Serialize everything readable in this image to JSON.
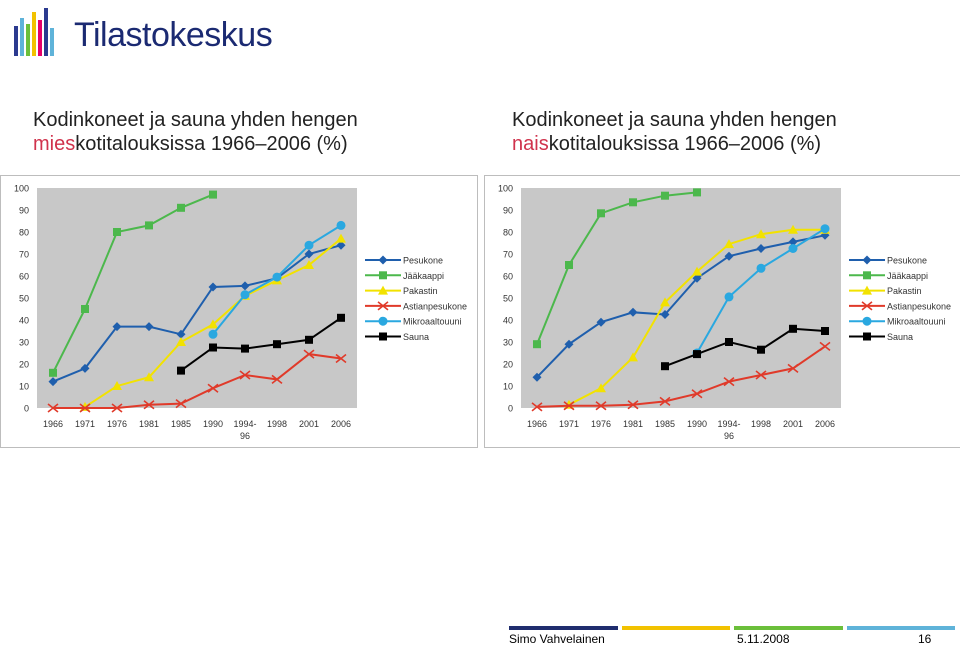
{
  "brand": {
    "name": "Tilastokeskus",
    "colors": [
      "#2b3a8f",
      "#5fb3d9",
      "#6bbf3a",
      "#f2c200",
      "#e5006a"
    ]
  },
  "left_title": {
    "highlight": "mies",
    "rest": "kotitalouksissa 1966–2006 (%)",
    "line1": "Kodinkoneet ja sauna yhden hengen"
  },
  "right_title": {
    "highlight": "nais",
    "rest": "kotitalouksissa 1966–2006 (%)",
    "line1": "Kodinkoneet ja sauna yhden hengen"
  },
  "footer": {
    "author": "Simo Vahvelainen",
    "date": "5.11.2008",
    "page": "16",
    "bar_colors": [
      "#1f2d6e",
      "#f2c200",
      "#6bbf3a",
      "#5fb3d9"
    ]
  },
  "chart_data": [
    {
      "type": "line",
      "categories": [
        "1966",
        "1971",
        "1976",
        "1981",
        "1985",
        "1990",
        "1994-96",
        "1998",
        "2001",
        "2006"
      ],
      "category_labels": [
        [
          "1966"
        ],
        [
          "1971"
        ],
        [
          "1976"
        ],
        [
          "1981"
        ],
        [
          "1985"
        ],
        [
          "1990"
        ],
        [
          "1994-",
          "96"
        ],
        [
          "1998"
        ],
        [
          "2001"
        ],
        [
          "2006"
        ]
      ],
      "ylim": [
        0,
        100
      ],
      "yticks": [
        0,
        10,
        20,
        30,
        40,
        50,
        60,
        70,
        80,
        90,
        100
      ],
      "grid": false,
      "legend_position": "right",
      "series": [
        {
          "name": "Pesukone",
          "color": "#1f5fad",
          "marker": "diamond",
          "values": [
            12,
            18,
            37,
            37,
            33.5,
            55,
            55.5,
            59,
            70,
            74
          ]
        },
        {
          "name": "Jääkaappi",
          "color": "#4cb84c",
          "marker": "square",
          "values": [
            16,
            45,
            80,
            83,
            91,
            97,
            null,
            null,
            null,
            null
          ]
        },
        {
          "name": "Pakastin",
          "color": "#f2e200",
          "marker": "triangle",
          "values": [
            null,
            0.5,
            10,
            14,
            30,
            38,
            51,
            58,
            65,
            77
          ]
        },
        {
          "name": "Astianpesukone",
          "color": "#e03a2a",
          "marker": "x",
          "values": [
            0,
            0,
            0,
            1.5,
            2,
            9,
            15,
            13,
            24.5,
            22.5
          ]
        },
        {
          "name": "Mikroaaltouuni",
          "color": "#2aa8e0",
          "marker": "circle",
          "values": [
            null,
            null,
            null,
            null,
            null,
            33.5,
            51.5,
            59.5,
            74,
            83
          ]
        },
        {
          "name": "Sauna",
          "color": "#000000",
          "marker": "square",
          "values": [
            null,
            null,
            null,
            null,
            17,
            27.5,
            27,
            29,
            31,
            41
          ]
        }
      ]
    },
    {
      "type": "line",
      "categories": [
        "1966",
        "1971",
        "1976",
        "1981",
        "1985",
        "1990",
        "1994-96",
        "1998",
        "2001",
        "2006"
      ],
      "category_labels": [
        [
          "1966"
        ],
        [
          "1971"
        ],
        [
          "1976"
        ],
        [
          "1981"
        ],
        [
          "1985"
        ],
        [
          "1990"
        ],
        [
          "1994-",
          "96"
        ],
        [
          "1998"
        ],
        [
          "2001"
        ],
        [
          "2006"
        ]
      ],
      "ylim": [
        0,
        100
      ],
      "yticks": [
        0,
        10,
        20,
        30,
        40,
        50,
        60,
        70,
        80,
        90,
        100
      ],
      "grid": false,
      "legend_position": "right",
      "series": [
        {
          "name": "Pesukone",
          "color": "#1f5fad",
          "marker": "diamond",
          "values": [
            14,
            29,
            39,
            43.5,
            42.5,
            59,
            69,
            72.5,
            75.5,
            78.5
          ]
        },
        {
          "name": "Jääkaappi",
          "color": "#4cb84c",
          "marker": "square",
          "values": [
            29,
            65,
            88.5,
            93.5,
            96.5,
            98,
            null,
            null,
            null,
            null
          ]
        },
        {
          "name": "Pakastin",
          "color": "#f2e200",
          "marker": "triangle",
          "values": [
            null,
            1.5,
            9,
            23,
            48,
            62,
            74.5,
            79,
            81,
            81
          ]
        },
        {
          "name": "Astianpesukone",
          "color": "#e03a2a",
          "marker": "x",
          "values": [
            0.5,
            1,
            1,
            1.5,
            3,
            6.5,
            12,
            15,
            18,
            28
          ]
        },
        {
          "name": "Mikroaaltouuni",
          "color": "#2aa8e0",
          "marker": "circle",
          "values": [
            null,
            null,
            null,
            null,
            null,
            25,
            50.5,
            63.5,
            72.5,
            81.5
          ]
        },
        {
          "name": "Sauna",
          "color": "#000000",
          "marker": "square",
          "values": [
            null,
            null,
            null,
            null,
            19,
            24.5,
            30,
            26.5,
            36,
            35
          ]
        }
      ]
    }
  ]
}
